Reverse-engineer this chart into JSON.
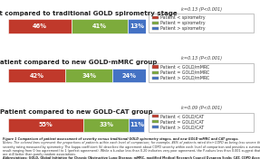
{
  "bars": [
    {
      "title": "Patient compared to traditional GOLD spirometry stage",
      "values": [
        46,
        41,
        13
      ],
      "labels": [
        "46%",
        "41%",
        "13%"
      ],
      "kappa": "k=0.13 (P<0.001)",
      "legend": [
        "Patient < spirometry",
        "Patient = spirometry",
        "Patient > spirometry"
      ]
    },
    {
      "title": "Patient compared to new GOLD-mMRC group",
      "values": [
        42,
        34,
        24
      ],
      "labels": [
        "42%",
        "34%",
        "24%"
      ],
      "kappa": "k=0.13 (P<0.001)",
      "legend": [
        "Patient < GOLD/mMRC",
        "Patient = GOLD/mMRC",
        "Patient > GOLD/mMRC"
      ]
    },
    {
      "title": "Patient compared to new GOLD-CAT group",
      "values": [
        55,
        33,
        11
      ],
      "labels": [
        "55%",
        "33%",
        "11%"
      ],
      "kappa": "k=0.09 (P<0.001)",
      "legend": [
        "Patient < GOLD/CAT",
        "Patient = GOLD/CAT",
        "Patient > GOLD/CAT"
      ]
    }
  ],
  "colors": [
    "#c0392b",
    "#7dab3c",
    "#4472c4"
  ],
  "background": "#ffffff",
  "note_lines": [
    [
      "bold_italic",
      "Figure 1 Comparison of patient assessment of severity versus traditional GOLD spirometry stages, and new GOLD-mMRC and CAT groups."
    ],
    [
      "italic",
      "Notes: The colored bars represent the proportions of patients within each level of comparison; for example, 46% of patients rated their COPD as being less severe than the"
    ],
    [
      "normal",
      "severity rating measured by spirometry. The kappa coefficient (k) describes the agreement about COPD severity within each level of comparison and provides a summary"
    ],
    [
      "normal",
      "result ranging from 0 (no agreement) to 1 (perfect agreement). While a k-value less than 0.20 indicates very poor agreement, the P-values less than 0.001 suggest that these"
    ],
    [
      "normal",
      "are still better than purely random associations."
    ],
    [
      "bold",
      "Abbreviations: GOLD, Global Initiative for Chronic Obstructive Lung Disease; mMRC, modified Medical Research Council Dyspnea Scale; CAT, COPD Assessment Test."
    ]
  ]
}
